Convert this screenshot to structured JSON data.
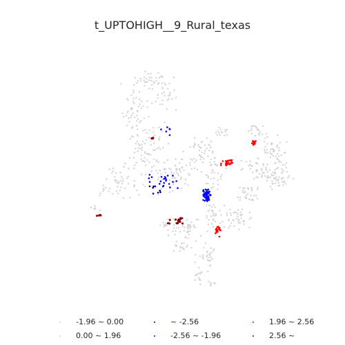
{
  "title": "t_UPTOHIGH__9_Rural_texas",
  "legend": [
    {
      "label": "-1.96 ~ 0.00",
      "color": "#d3d3d3"
    },
    {
      "label": "~ -2.56",
      "color": "#00008b"
    },
    {
      "label": "1.96 ~ 2.56",
      "color": "#ff0000"
    },
    {
      "label": "0.00 ~ 1.96",
      "color": "#d3d3d3"
    },
    {
      "label": "-2.56 ~ -1.96",
      "color": "#0000ff"
    },
    {
      "label": "2.56 ~",
      "color": "#8b0000"
    }
  ],
  "colors": {
    "background": "#ffffff",
    "neutral": "#d3d3d3",
    "cold_strong": "#00008b",
    "cold": "#0000ff",
    "hot": "#ff0000",
    "hot_strong": "#8b0000"
  }
}
